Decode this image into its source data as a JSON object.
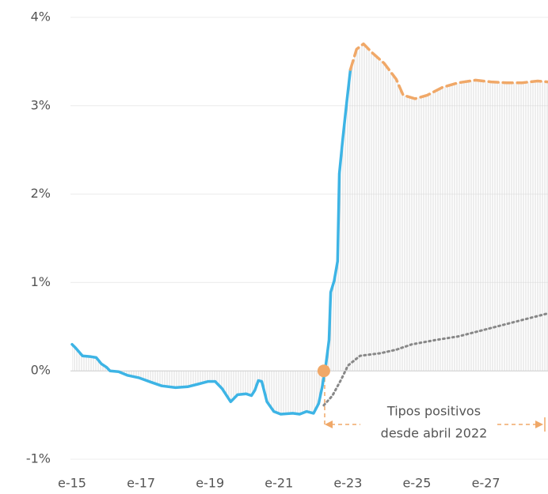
{
  "chart_data": {
    "type": "line",
    "xlim": [
      2015,
      2028.8
    ],
    "ylim": [
      -1,
      4
    ],
    "xticks": [
      {
        "value": 2015,
        "label": "e-15"
      },
      {
        "value": 2017,
        "label": "e-17"
      },
      {
        "value": 2019,
        "label": "e-19"
      },
      {
        "value": 2021,
        "label": "e-21"
      },
      {
        "value": 2023,
        "label": "e-23"
      },
      {
        "value": 2025,
        "label": "e-25"
      },
      {
        "value": 2027,
        "label": "e-27"
      }
    ],
    "yticks": [
      {
        "value": -1,
        "label": "-1%"
      },
      {
        "value": 0,
        "label": "0%"
      },
      {
        "value": 1,
        "label": "1%"
      },
      {
        "value": 2,
        "label": "2%"
      },
      {
        "value": 3,
        "label": "3%"
      },
      {
        "value": 4,
        "label": "4%"
      }
    ],
    "grid": true,
    "series": [
      {
        "color": "#3db4e5",
        "style": "solid",
        "hatch": true,
        "x": [
          2015.0,
          2015.1,
          2015.3,
          2015.55,
          2015.7,
          2015.85,
          2016.0,
          2016.1,
          2016.35,
          2016.6,
          2016.95,
          2017.3,
          2017.6,
          2018.0,
          2018.35,
          2018.65,
          2018.95,
          2019.15,
          2019.35,
          2019.6,
          2019.8,
          2020.05,
          2020.2,
          2020.3,
          2020.4,
          2020.5,
          2020.65,
          2020.85,
          2021.05,
          2021.4,
          2021.6,
          2021.8,
          2022.0,
          2022.15,
          2022.25,
          2022.35,
          2022.45,
          2022.5,
          2022.6,
          2022.7,
          2022.75,
          2022.85,
          2022.95,
          2023.07
        ],
        "values": [
          0.3,
          0.26,
          0.17,
          0.16,
          0.15,
          0.08,
          0.04,
          0.0,
          -0.01,
          -0.05,
          -0.08,
          -0.13,
          -0.17,
          -0.19,
          -0.18,
          -0.15,
          -0.12,
          -0.12,
          -0.2,
          -0.35,
          -0.27,
          -0.26,
          -0.28,
          -0.22,
          -0.11,
          -0.12,
          -0.35,
          -0.46,
          -0.49,
          -0.48,
          -0.49,
          -0.46,
          -0.48,
          -0.37,
          -0.19,
          0.04,
          0.35,
          0.89,
          1.02,
          1.24,
          2.23,
          2.63,
          2.99,
          3.41
        ]
      },
      {
        "color": "#f0a868",
        "style": "dashed",
        "hatch": true,
        "x": [
          2023.07,
          2023.25,
          2023.45,
          2023.7,
          2024.05,
          2024.4,
          2024.6,
          2024.95,
          2025.3,
          2025.75,
          2026.2,
          2026.7,
          2027.15,
          2027.6,
          2028.05,
          2028.5,
          2028.8
        ],
        "values": [
          3.41,
          3.64,
          3.7,
          3.6,
          3.48,
          3.3,
          3.12,
          3.08,
          3.12,
          3.21,
          3.26,
          3.29,
          3.27,
          3.26,
          3.26,
          3.28,
          3.27
        ]
      },
      {
        "color": "#888888",
        "style": "dotted",
        "hatch": false,
        "x": [
          2022.3,
          2022.55,
          2022.8,
          2023.0,
          2023.35,
          2023.95,
          2024.4,
          2024.85,
          2025.55,
          2026.2,
          2026.9,
          2027.6,
          2028.3,
          2028.8
        ],
        "values": [
          -0.39,
          -0.28,
          -0.1,
          0.06,
          0.17,
          0.2,
          0.24,
          0.3,
          0.35,
          0.39,
          0.46,
          0.53,
          0.6,
          0.65
        ]
      }
    ],
    "marker": {
      "x": 2022.3,
      "value": 0,
      "color": "#f0a868"
    },
    "annotation": [
      "Tipos positivos",
      "desde abril 2022"
    ]
  }
}
